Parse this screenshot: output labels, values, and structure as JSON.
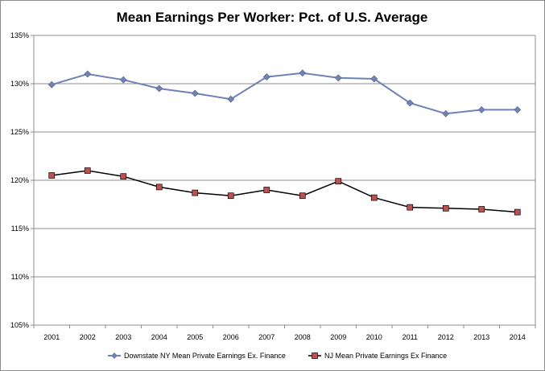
{
  "chart_data": {
    "type": "line",
    "title": "Mean Earnings Per Worker:  Pct. of U.S. Average",
    "xlabel": "",
    "ylabel": "",
    "categories": [
      "2001",
      "2002",
      "2003",
      "2004",
      "2005",
      "2006",
      "2007",
      "2008",
      "2009",
      "2010",
      "2011",
      "2012",
      "2013",
      "2014"
    ],
    "y_ticks": [
      "105%",
      "110%",
      "115%",
      "120%",
      "125%",
      "130%",
      "135%"
    ],
    "ylim": [
      105,
      135
    ],
    "grid": true,
    "legend_position": "bottom",
    "series": [
      {
        "name": "Downstate NY Mean Private Earnings Ex. Finance",
        "color": "#7082B6",
        "marker": "diamond",
        "values": [
          129.9,
          131.0,
          130.4,
          129.5,
          129.0,
          128.4,
          130.7,
          131.1,
          130.6,
          130.5,
          128.0,
          126.9,
          127.3,
          127.3
        ]
      },
      {
        "name": "NJ Mean Private Earnings Ex Finance",
        "color": "#000000",
        "marker_color": "#C0504D",
        "marker": "square",
        "values": [
          120.5,
          121.0,
          120.4,
          119.3,
          118.7,
          118.4,
          119.0,
          118.4,
          119.9,
          118.2,
          117.2,
          117.1,
          117.0,
          116.7
        ]
      }
    ]
  }
}
